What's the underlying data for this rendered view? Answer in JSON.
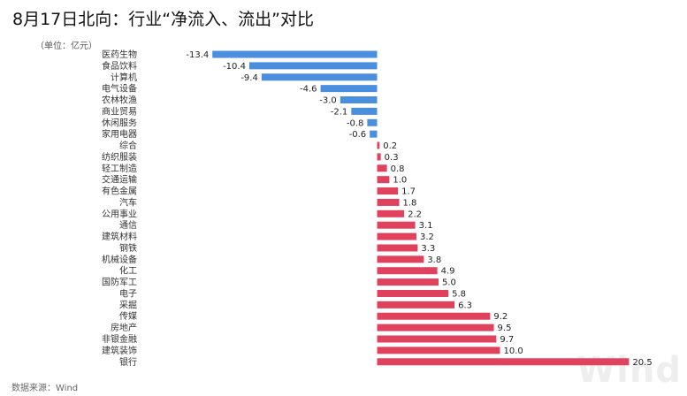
{
  "title": "8月17日北向：行业“净流入、流出”对比",
  "unit_label": "（单位：亿元）",
  "source_label": "数据来源：Wind",
  "watermark": "Wind",
  "colors": {
    "positive": "#e0425e",
    "negative": "#4a8ede"
  },
  "chart_data": {
    "type": "bar",
    "orientation": "horizontal",
    "title": "8月17日北向：行业“净流入、流出”对比",
    "xlabel": "",
    "ylabel": "单位：亿元",
    "categories": [
      "医药生物",
      "食品饮料",
      "计算机",
      "电气设备",
      "农林牧渔",
      "商业贸易",
      "休闲服务",
      "家用电器",
      "综合",
      "纺织服装",
      "轻工制造",
      "交通运输",
      "有色金属",
      "汽车",
      "公用事业",
      "通信",
      "建筑材料",
      "钢铁",
      "机械设备",
      "化工",
      "国防军工",
      "电子",
      "采掘",
      "传媒",
      "房地产",
      "非银金融",
      "建筑装饰",
      "银行"
    ],
    "values": [
      -13.4,
      -10.4,
      -9.4,
      -4.6,
      -3.0,
      -2.1,
      -0.8,
      -0.6,
      0.2,
      0.3,
      0.8,
      1.0,
      1.7,
      1.8,
      2.2,
      3.1,
      3.2,
      3.3,
      3.8,
      4.9,
      5.0,
      5.8,
      6.3,
      9.2,
      9.5,
      9.7,
      10.0,
      20.5
    ],
    "value_labels": [
      "-13.4",
      "-10.4",
      "-9.4",
      "-4.6",
      "-3.0",
      "-2.1",
      "-0.8",
      "-0.6",
      "0.2",
      "0.3",
      "0.8",
      "1.0",
      "1.7",
      "1.8",
      "2.2",
      "3.1",
      "3.2",
      "3.3",
      "3.8",
      "4.9",
      "5.0",
      "5.8",
      "6.3",
      "9.2",
      "9.5",
      "9.7",
      "10.0",
      "20.5"
    ],
    "xlim": [
      -14.0,
      21.0
    ],
    "grid": false,
    "legend": "none"
  }
}
